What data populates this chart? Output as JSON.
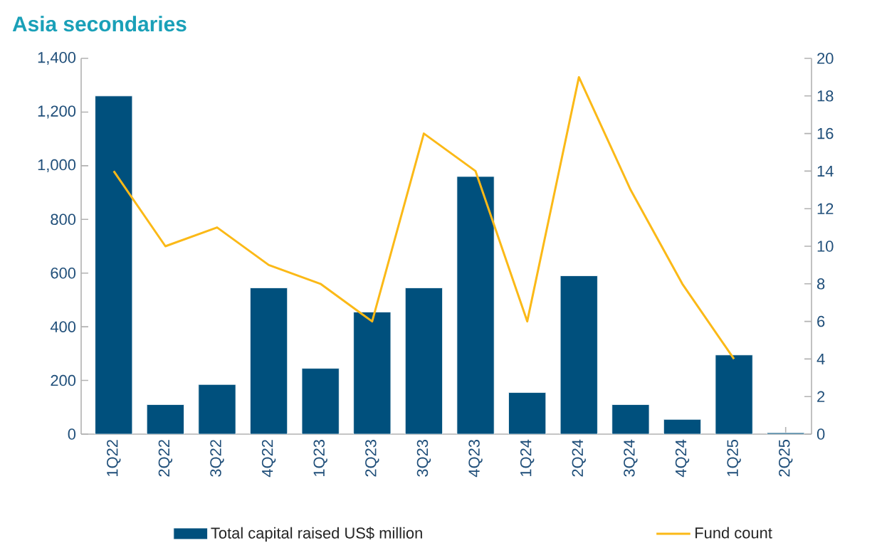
{
  "chart_data": {
    "type": "bar",
    "title": "Asia secondaries",
    "categories": [
      "1Q22",
      "2Q22",
      "3Q22",
      "4Q22",
      "1Q23",
      "2Q23",
      "3Q23",
      "4Q23",
      "1Q24",
      "2Q24",
      "3Q24",
      "4Q24",
      "1Q25",
      "2Q25"
    ],
    "series": [
      {
        "name": "Total capital raised US$ million",
        "color": "#00507d",
        "values": [
          1260,
          110,
          185,
          545,
          245,
          455,
          545,
          960,
          155,
          590,
          110,
          55,
          295,
          5
        ]
      },
      {
        "name": "Fund count",
        "type": "line",
        "axis": "y2",
        "color": "#fbb917",
        "values": [
          14,
          10,
          11,
          9,
          8,
          6,
          16,
          14,
          6,
          19,
          13,
          8,
          4,
          null
        ]
      }
    ],
    "ylim": [
      0,
      1400
    ],
    "yticks": [
      0,
      200,
      400,
      600,
      800,
      {
        "value": 1000,
        "label": "1,000"
      },
      {
        "value": 1200,
        "label": "1,200"
      },
      {
        "value": 1400,
        "label": "1,400"
      }
    ],
    "y2lim": [
      0,
      20
    ],
    "y2ticks": [
      0,
      2,
      4,
      6,
      8,
      10,
      12,
      14,
      16,
      18,
      20
    ],
    "legend": "bottom"
  }
}
